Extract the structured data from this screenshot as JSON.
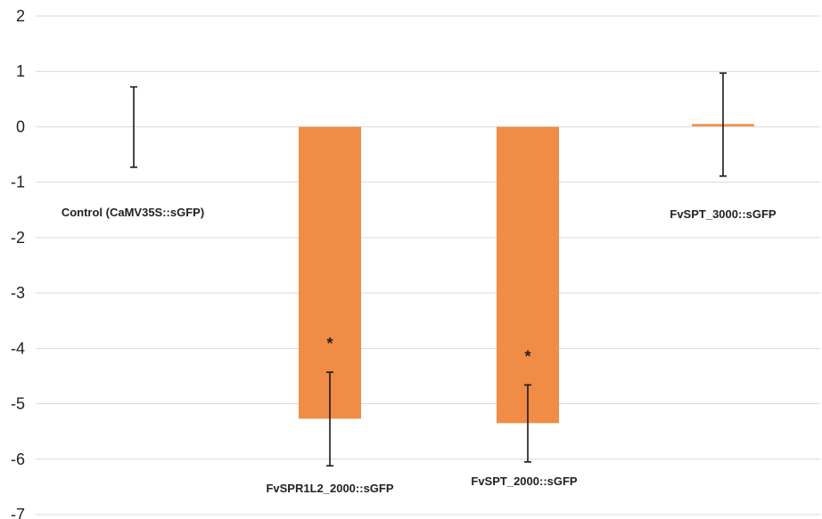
{
  "chart_data": {
    "type": "bar",
    "categories": [
      "Control (CaMV35S::sGFP)",
      "FvSPR1L2_2000::sGFP",
      "FvSPT_2000::sGFP",
      "FvSPT_3000::sGFP"
    ],
    "series": [
      {
        "values": [
          0,
          -5.27,
          -5.35,
          0.03
        ],
        "error_upper": [
          0.72,
          -4.43,
          -4.66,
          0.97
        ],
        "error_lower": [
          -0.73,
          -6.12,
          -6.05,
          -0.89
        ],
        "significance": [
          "",
          "*",
          "*",
          ""
        ]
      }
    ],
    "ylim": [
      -7,
      2
    ],
    "yticks": [
      "2",
      "1",
      "0",
      "-1",
      "-2",
      "-3",
      "-4",
      "-5",
      "-6",
      "-7"
    ],
    "grid": true,
    "bar_color": "#f08c45",
    "grid_color": "#d9d9d9",
    "errorbar_color": "#1a1a1a"
  }
}
